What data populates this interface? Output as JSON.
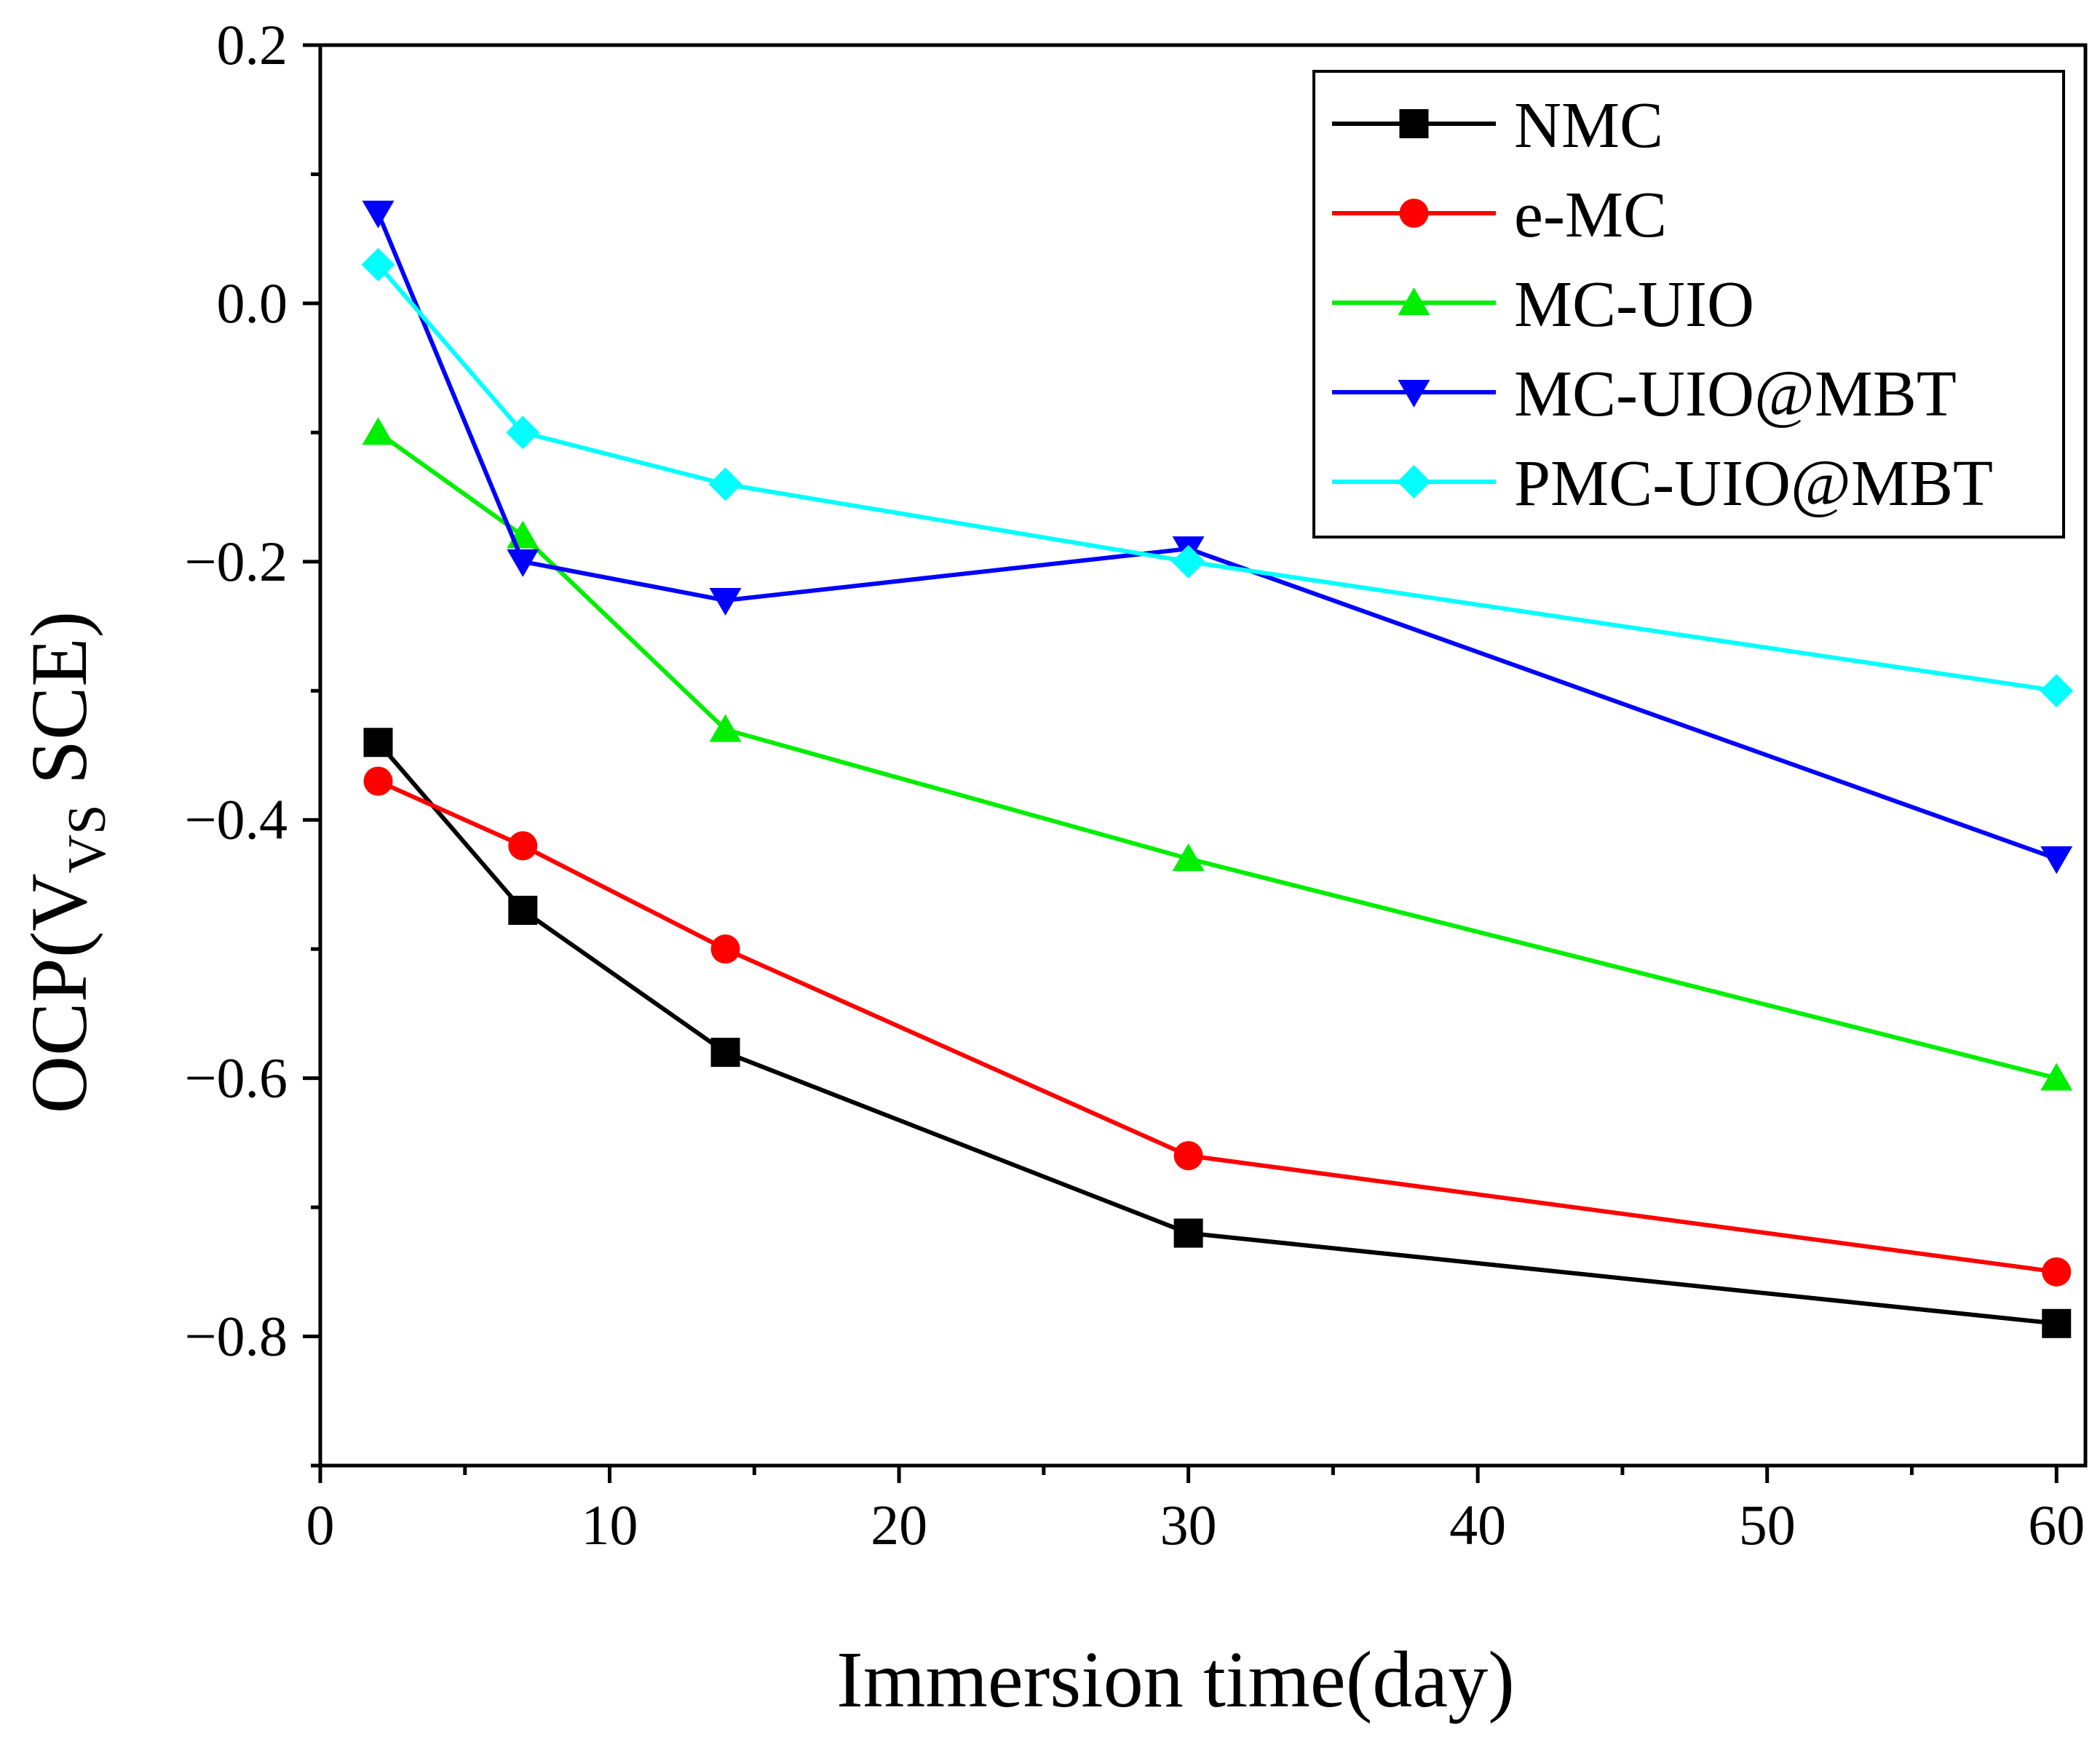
{
  "chart_data": {
    "type": "line",
    "xlabel": "Immersion time(day)",
    "ylabel": {
      "prefix": "OCP(V",
      "subscript": "VS",
      "suffix": " SCE)"
    },
    "xlim": [
      0,
      61
    ],
    "ylim": [
      -0.9,
      0.2
    ],
    "xticks": [
      0,
      10,
      20,
      30,
      40,
      50,
      60
    ],
    "xtick_labels": [
      "0",
      "10",
      "20",
      "30",
      "40",
      "50",
      "60"
    ],
    "xminor": [
      5,
      15,
      25,
      35,
      45,
      55
    ],
    "yticks": [
      0.2,
      0.0,
      -0.2,
      -0.4,
      -0.6,
      -0.8
    ],
    "ytick_labels": [
      "0.2",
      "0.0",
      "−0.2",
      "−0.4",
      "−0.6",
      "−0.8"
    ],
    "yminor": [
      0.1,
      -0.1,
      -0.3,
      -0.5,
      -0.7,
      -0.9
    ],
    "grid": false,
    "legend_position": "top-right",
    "x": [
      2,
      7,
      14,
      30,
      60
    ],
    "series": [
      {
        "name": "NMC",
        "color": "#000000",
        "marker": "square",
        "values": [
          -0.34,
          -0.47,
          -0.58,
          -0.72,
          -0.79
        ]
      },
      {
        "name": "e-MC",
        "color": "#ff0000",
        "marker": "circle",
        "values": [
          -0.37,
          -0.42,
          -0.5,
          -0.66,
          -0.75
        ]
      },
      {
        "name": "MC-UIO",
        "color": "#00ee00",
        "marker": "triangle-up",
        "values": [
          -0.1,
          -0.18,
          -0.33,
          -0.43,
          -0.6
        ]
      },
      {
        "name": "MC-UIO@MBT",
        "color": "#0000ff",
        "marker": "triangle-down",
        "values": [
          0.07,
          -0.2,
          -0.23,
          -0.19,
          -0.43
        ]
      },
      {
        "name": "PMC-UIO@MBT",
        "color": "#00ffff",
        "marker": "diamond",
        "values": [
          0.03,
          -0.1,
          -0.14,
          -0.2,
          -0.3
        ]
      }
    ]
  }
}
